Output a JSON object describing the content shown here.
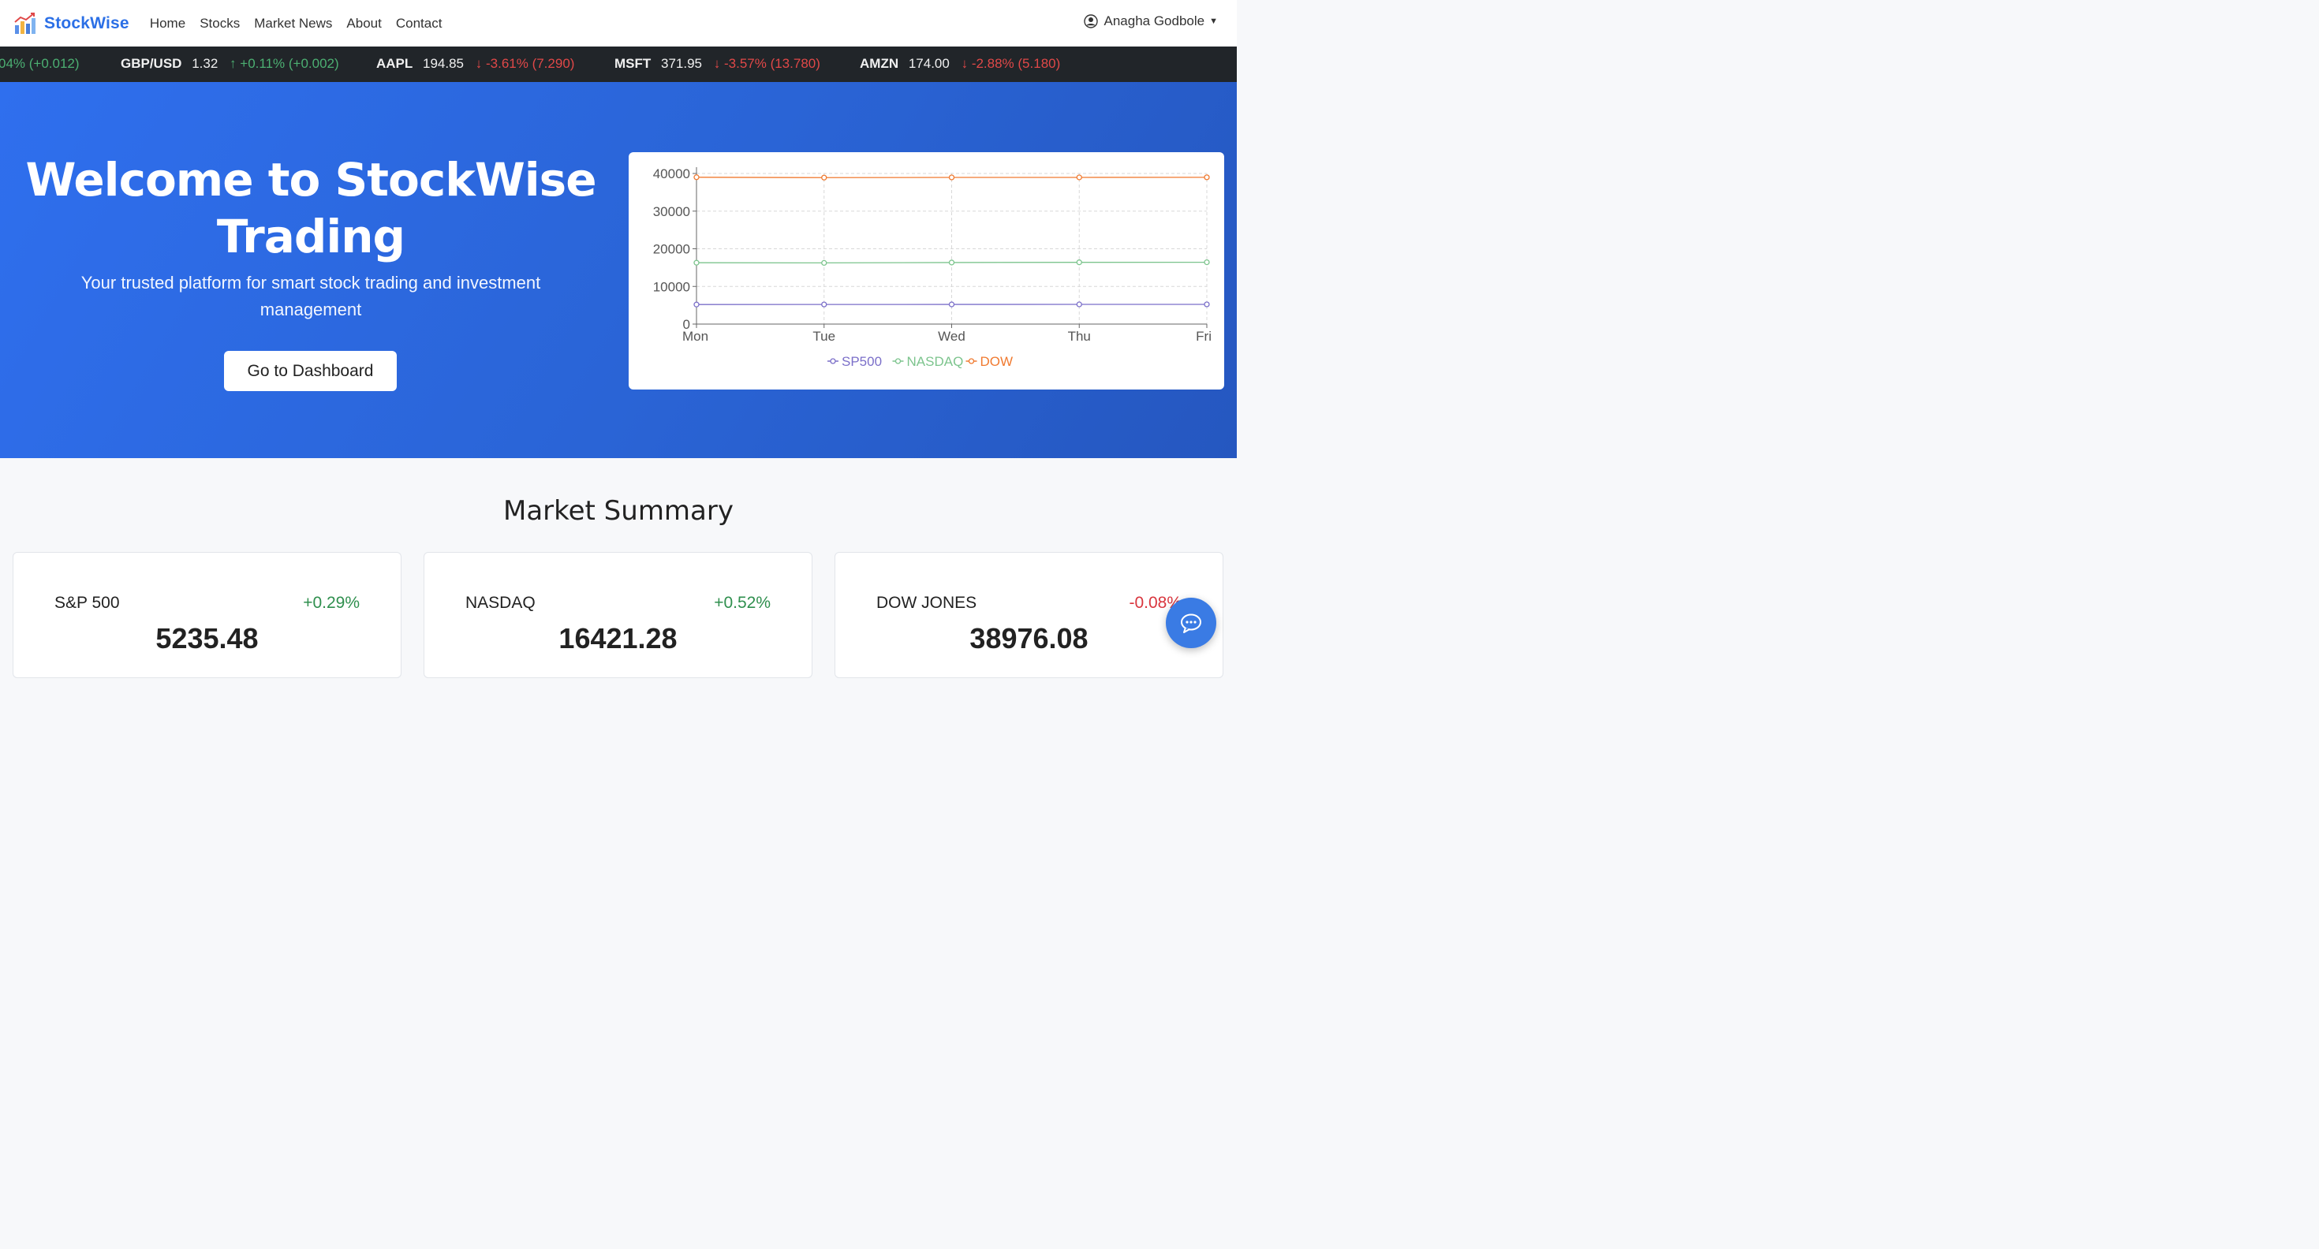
{
  "navbar": {
    "brand": "StockWise",
    "links": [
      "Home",
      "Stocks",
      "Market News",
      "About",
      "Contact"
    ],
    "user": "Anagha Godbole"
  },
  "ticker": [
    {
      "symbol": "",
      "price": "",
      "change": "04% (+0.012)",
      "direction": "up"
    },
    {
      "symbol": "GBP/USD",
      "price": "1.32",
      "change": "+0.11% (+0.002)",
      "direction": "up"
    },
    {
      "symbol": "AAPL",
      "price": "194.85",
      "change": "-3.61% (7.290)",
      "direction": "down"
    },
    {
      "symbol": "MSFT",
      "price": "371.95",
      "change": "-3.57% (13.780)",
      "direction": "down"
    },
    {
      "symbol": "AMZN",
      "price": "174.00",
      "change": "-2.88% (5.180)",
      "direction": "down"
    }
  ],
  "hero": {
    "title_line1": "Welcome to StockWise",
    "title_line2": "Trading",
    "subtitle_line1": "Your trusted platform for smart stock trading and investment",
    "subtitle_line2": "management",
    "cta": "Go to Dashboard"
  },
  "chart_data": {
    "type": "line",
    "x": [
      "Mon",
      "Tue",
      "Wed",
      "Thu",
      "Fri"
    ],
    "yticks": [
      0,
      10000,
      20000,
      30000,
      40000
    ],
    "ylim": [
      0,
      40000
    ],
    "grid": true,
    "legend_position": "bottom",
    "series": [
      {
        "name": "SP500",
        "color": "#7b6fc9",
        "values": [
          5200,
          5210,
          5220,
          5230,
          5235
        ]
      },
      {
        "name": "NASDAQ",
        "color": "#7cc48d",
        "values": [
          16300,
          16250,
          16350,
          16400,
          16421
        ]
      },
      {
        "name": "DOW",
        "color": "#f07a30",
        "values": [
          39000,
          38900,
          38950,
          38960,
          38976
        ]
      }
    ]
  },
  "summary": {
    "title": "Market Summary",
    "cards": [
      {
        "name": "S&P 500",
        "change": "+0.29%",
        "value": "5235.48",
        "direction": "up"
      },
      {
        "name": "NASDAQ",
        "change": "+0.52%",
        "value": "16421.28",
        "direction": "up"
      },
      {
        "name": "DOW JONES",
        "change": "-0.08%",
        "value": "38976.08",
        "direction": "down"
      }
    ]
  }
}
